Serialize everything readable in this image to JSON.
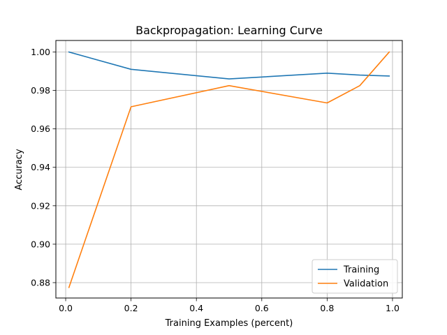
{
  "chart_data": {
    "type": "line",
    "title": "Backpropagation: Learning Curve",
    "xlabel": "Training Examples (percent)",
    "ylabel": "Accuracy",
    "xlim": [
      -0.03,
      1.03
    ],
    "ylim": [
      0.872,
      1.006
    ],
    "xticks": [
      0.0,
      0.2,
      0.4,
      0.6,
      0.8,
      1.0
    ],
    "xtick_labels": [
      "0.0",
      "0.2",
      "0.4",
      "0.6",
      "0.8",
      "1.0"
    ],
    "yticks": [
      0.88,
      0.9,
      0.92,
      0.94,
      0.96,
      0.98,
      1.0
    ],
    "ytick_labels": [
      "0.88",
      "0.90",
      "0.92",
      "0.94",
      "0.96",
      "0.98",
      "1.00"
    ],
    "grid": true,
    "legend_position": "lower-right",
    "x": [
      0.01,
      0.2,
      0.5,
      0.8,
      0.9,
      0.99
    ],
    "series": [
      {
        "name": "Training",
        "color": "#1f77b4",
        "values": [
          1.0,
          0.991,
          0.986,
          0.989,
          0.988,
          0.9875
        ]
      },
      {
        "name": "Validation",
        "color": "#ff7f0e",
        "values": [
          0.8775,
          0.9715,
          0.9825,
          0.9735,
          0.9825,
          1.0
        ]
      }
    ]
  }
}
